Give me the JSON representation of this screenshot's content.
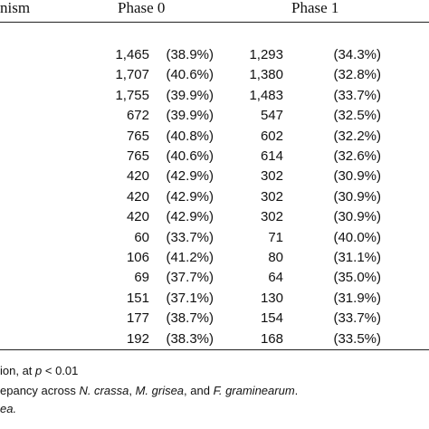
{
  "table": {
    "header": [
      "nism",
      "Phase 0",
      "Phase 1"
    ],
    "rows": [
      [
        [
          "1,465",
          "(38.9%)"
        ],
        [
          "1,293",
          "(34.3%)"
        ]
      ],
      [
        [
          "1,707",
          "(40.6%)"
        ],
        [
          "1,380",
          "(32.8%)"
        ]
      ],
      [
        [
          "1,755",
          "(39.9%)"
        ],
        [
          "1,483",
          "(33.7%)"
        ]
      ],
      [
        [
          "672",
          "(39.9%)"
        ],
        [
          "547",
          "(32.5%)"
        ]
      ],
      [
        [
          "765",
          "(40.8%)"
        ],
        [
          "602",
          "(32.2%)"
        ]
      ],
      [
        [
          "765",
          "(40.6%)"
        ],
        [
          "614",
          "(32.6%)"
        ]
      ],
      [
        [
          "420",
          "(42.9%)"
        ],
        [
          "302",
          "(30.9%)"
        ]
      ],
      [
        [
          "420",
          "(42.9%)"
        ],
        [
          "302",
          "(30.9%)"
        ]
      ],
      [
        [
          "420",
          "(42.9%)"
        ],
        [
          "302",
          "(30.9%)"
        ]
      ],
      [
        [
          "60",
          "(33.7%)"
        ],
        [
          "71",
          "(40.0%)"
        ]
      ],
      [
        [
          "106",
          "(41.2%)"
        ],
        [
          "80",
          "(31.1%)"
        ]
      ],
      [
        [
          "69",
          "(37.7%)"
        ],
        [
          "64",
          "(35.0%)"
        ]
      ],
      [
        [
          "151",
          "(37.1%)"
        ],
        [
          "130",
          "(31.9%)"
        ]
      ],
      [
        [
          "177",
          "(38.7%)"
        ],
        [
          "154",
          "(33.7%)"
        ]
      ],
      [
        [
          "192",
          "(38.3%)"
        ],
        [
          "168",
          "(33.5%)"
        ]
      ]
    ]
  },
  "footnotes": [
    [
      "ion, at ",
      "p",
      " < 0.01"
    ],
    [
      "epancy across ",
      "N. crassa",
      ", ",
      "M. grisea",
      ", and ",
      "F. graminearum",
      "."
    ],
    [
      "ea."
    ]
  ]
}
